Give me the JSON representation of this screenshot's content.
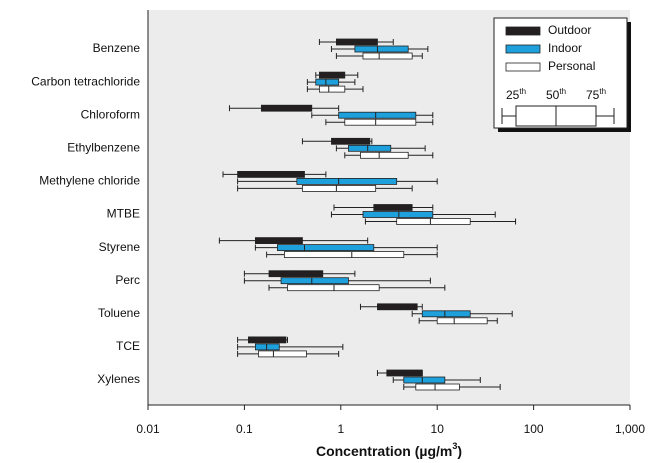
{
  "chart_data": {
    "type": "box",
    "xscale": "log",
    "categories": [
      "Benzene",
      "Carbon tetrachloride",
      "Chloroform",
      "Ethylbenzene",
      "Methylene chloride",
      "MTBE",
      "Styrene",
      "Perc",
      "Toluene",
      "TCE",
      "Xylenes"
    ],
    "series": [
      {
        "name": "Outdoor",
        "color": "#231f20",
        "low": [
          0.6,
          0.55,
          0.07,
          0.4,
          0.06,
          0.85,
          0.055,
          0.1,
          1.6,
          0.085,
          2.4
        ],
        "q1": [
          0.9,
          0.6,
          0.15,
          0.8,
          0.085,
          2.2,
          0.13,
          0.18,
          2.4,
          0.11,
          3
        ],
        "median": [
          1.4,
          0.8,
          0.25,
          1.2,
          0.18,
          3.5,
          0.2,
          0.3,
          4.5,
          0.17,
          4.5
        ],
        "q3": [
          2.4,
          1.1,
          0.5,
          2,
          0.42,
          5.5,
          0.4,
          0.65,
          6.2,
          0.27,
          7
        ],
        "high": [
          3.5,
          1.5,
          0.95,
          2.1,
          0.7,
          9,
          1.9,
          1.4,
          7,
          0.28,
          7
        ]
      },
      {
        "name": "Indoor",
        "color": "#1ea0dc",
        "low": [
          0.8,
          0.45,
          0.5,
          0.9,
          0.085,
          0.8,
          0.13,
          0.1,
          5.5,
          0.085,
          3.5
        ],
        "q1": [
          1.4,
          0.55,
          0.95,
          1.2,
          0.35,
          1.7,
          0.22,
          0.24,
          7,
          0.13,
          4.5
        ],
        "median": [
          2.4,
          0.7,
          2.3,
          1.9,
          0.95,
          4,
          0.42,
          0.5,
          12,
          0.17,
          7
        ],
        "q3": [
          5,
          0.95,
          6,
          3.3,
          3.8,
          9,
          2.2,
          1.2,
          22,
          0.23,
          12
        ],
        "high": [
          8,
          1.4,
          9,
          7.5,
          10,
          40,
          10,
          8.5,
          60,
          1.05,
          28
        ]
      },
      {
        "name": "Personal",
        "color": "#ffffff",
        "low": [
          0.9,
          0.45,
          0.7,
          1.1,
          0.085,
          1.8,
          0.17,
          0.18,
          6.5,
          0.085,
          4.5
        ],
        "q1": [
          1.7,
          0.6,
          1.1,
          1.6,
          0.4,
          3.8,
          0.26,
          0.28,
          10,
          0.14,
          6
        ],
        "median": [
          2.5,
          0.75,
          2.3,
          2.5,
          0.9,
          8.5,
          1.3,
          0.85,
          15,
          0.2,
          9.5
        ],
        "q3": [
          5.5,
          1.1,
          6,
          5,
          2.3,
          22,
          4.5,
          2.5,
          33,
          0.44,
          17
        ],
        "high": [
          7,
          1.7,
          9,
          9,
          5.5,
          65,
          10,
          12,
          42,
          0.95,
          45
        ]
      }
    ],
    "xlim": [
      0.01,
      1000
    ],
    "xticks": [
      0.01,
      0.1,
      1,
      10,
      100,
      {
        "value": 1000,
        "label": "1,000"
      }
    ],
    "xlabel": {
      "text": "Concentration (µg/m",
      "sup": "3",
      "end": ")"
    },
    "percentile_labels": [
      {
        "number": "25",
        "suffix": "th"
      },
      {
        "number": "50",
        "suffix": "th"
      },
      {
        "number": "75",
        "suffix": "th"
      }
    ]
  }
}
